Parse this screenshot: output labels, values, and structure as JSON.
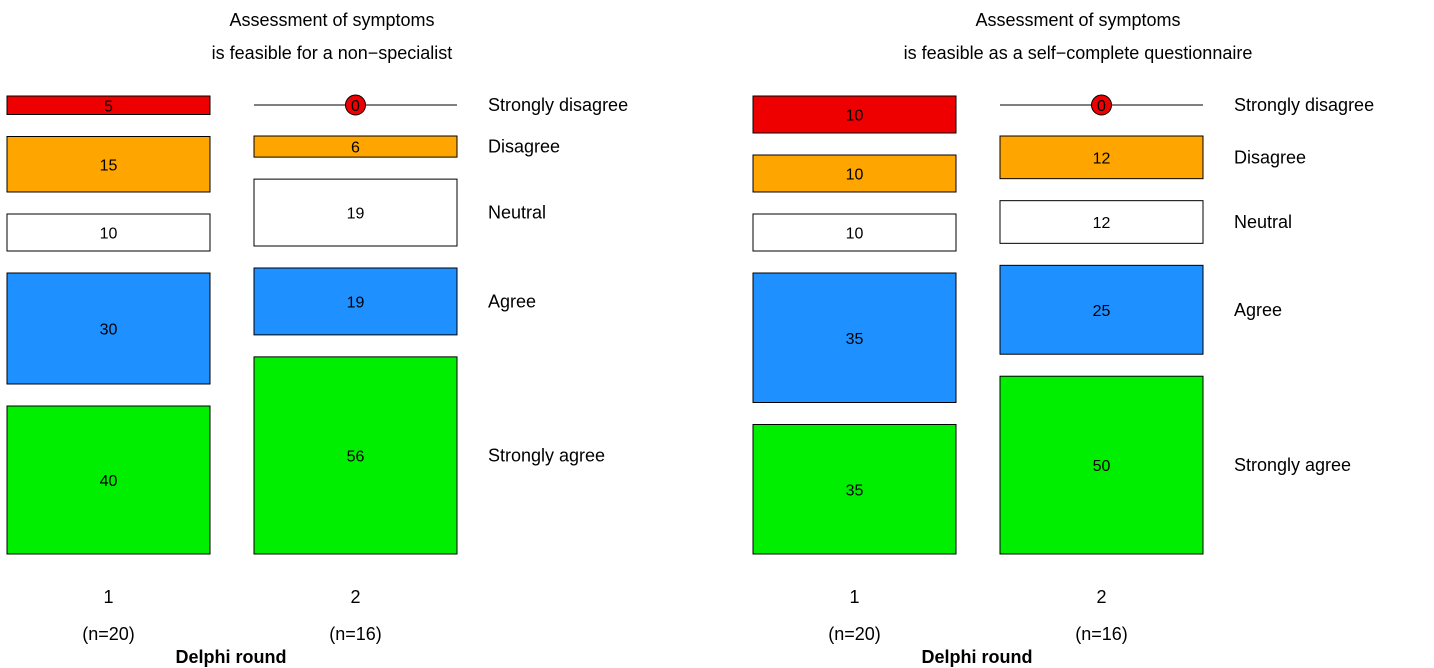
{
  "colors": {
    "Strongly disagree": "#ee0000",
    "Disagree": "#ffa500",
    "Neutral": "#ffffff",
    "Agree": "#1e90ff",
    "Strongly agree": "#00ee00"
  },
  "chart_data": [
    {
      "type": "bar",
      "title": [
        "Assessment of symptoms",
        "is feasible for a non−specialist"
      ],
      "xlabel": "Delphi round",
      "categories": [
        "Strongly disagree",
        "Disagree",
        "Neutral",
        "Agree",
        "Strongly agree"
      ],
      "rounds": [
        {
          "label": "1",
          "n": "(n=20)",
          "values": [
            5,
            15,
            10,
            30,
            40
          ]
        },
        {
          "label": "2",
          "n": "(n=16)",
          "values": [
            0,
            6,
            19,
            19,
            56
          ]
        }
      ]
    },
    {
      "type": "bar",
      "title": [
        "Assessment of symptoms",
        "is feasible as a self−complete questionnaire"
      ],
      "xlabel": "Delphi round",
      "categories": [
        "Strongly disagree",
        "Disagree",
        "Neutral",
        "Agree",
        "Strongly agree"
      ],
      "rounds": [
        {
          "label": "1",
          "n": "(n=20)",
          "values": [
            10,
            10,
            10,
            35,
            35
          ]
        },
        {
          "label": "2",
          "n": "(n=16)",
          "values": [
            0,
            12,
            12,
            25,
            50
          ]
        }
      ]
    }
  ]
}
